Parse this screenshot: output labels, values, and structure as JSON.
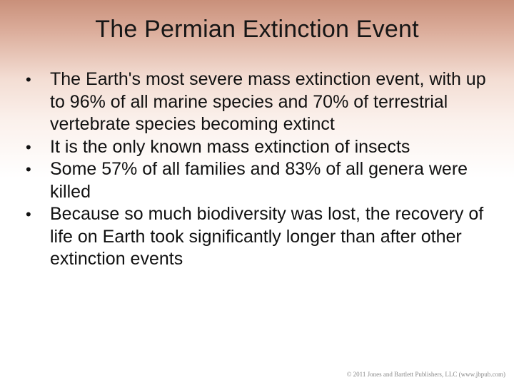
{
  "slide": {
    "title": "The Permian Extinction Event",
    "bullets": [
      "The Earth's most severe mass extinction event, with up to 96% of all marine species and 70% of terrestrial vertebrate species becoming extinct",
      "It is the only known mass extinction of insects",
      "Some 57% of all families and 83% of all genera were killed",
      "Because so much biodiversity was lost, the recovery of life on Earth took significantly longer than after other extinction events"
    ],
    "bullet_symbol": "•",
    "footer": "© 2011 Jones and Bartlett Publishers, LLC (www.jbpub.com)"
  },
  "colors": {
    "header_gradient_top": "#c9907a",
    "background": "#ffffff",
    "text": "#111111"
  }
}
